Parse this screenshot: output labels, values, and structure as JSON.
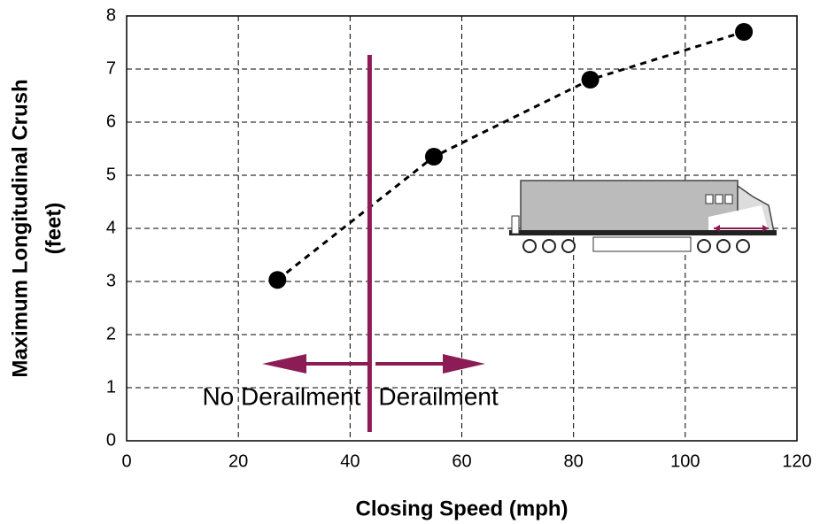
{
  "chart_data": {
    "type": "scatter",
    "x": [
      27,
      55,
      83,
      110.5
    ],
    "values": [
      3.03,
      5.35,
      6.8,
      7.7
    ],
    "color": "#000000",
    "line_style": "dashed",
    "xlabel": "Closing Speed (mph)",
    "ylabel": [
      "Maximum Longitudinal Crush",
      "(feet)"
    ],
    "xlim": [
      0,
      120
    ],
    "xticks": [
      0,
      20,
      40,
      60,
      80,
      100,
      120
    ],
    "ylim": [
      0,
      8
    ],
    "yticks": [
      0,
      1,
      2,
      3,
      4,
      5,
      6,
      7,
      8
    ],
    "grid": true,
    "threshold_x": 43.5,
    "threshold_color": "#8c1c55",
    "annotations": [
      "No Derailment",
      "Derailment"
    ]
  }
}
